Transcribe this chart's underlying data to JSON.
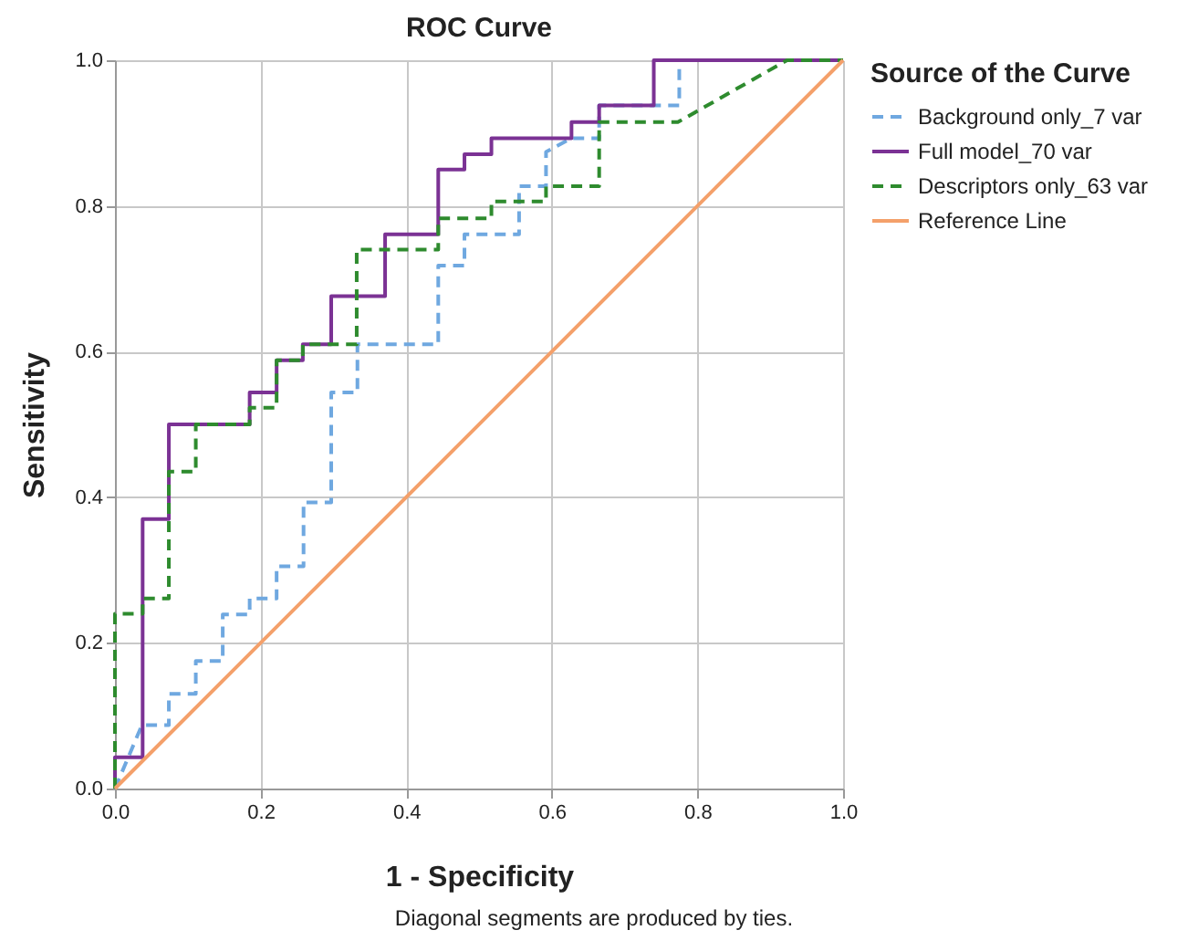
{
  "chart_data": {
    "type": "line",
    "title": "ROC Curve",
    "xlabel": "1 - Specificity",
    "ylabel": "Sensitivity",
    "legend_title": "Source of the Curve",
    "legend": "right",
    "grid": true,
    "xlim": [
      0,
      1
    ],
    "ylim": [
      0,
      1
    ],
    "xticks": [
      {
        "value": 0,
        "label": "0.0"
      },
      {
        "value": 0.2,
        "label": "0.2"
      },
      {
        "value": 0.4,
        "label": "0.4"
      },
      {
        "value": 0.6,
        "label": "0.6"
      },
      {
        "value": 0.8,
        "label": "0.8"
      },
      {
        "value": 1,
        "label": "1.0"
      }
    ],
    "yticks": [
      {
        "value": 0,
        "label": "0.0"
      },
      {
        "value": 0.2,
        "label": "0.2"
      },
      {
        "value": 0.4,
        "label": "0.4"
      },
      {
        "value": 0.6,
        "label": "0.6"
      },
      {
        "value": 0.8,
        "label": "0.8"
      },
      {
        "value": 1,
        "label": "1.0"
      }
    ],
    "series": [
      {
        "name": "Background only_7 var",
        "color": "#6fa8e0",
        "line_style": "dashed",
        "x": [
          0,
          0.037,
          0.074,
          0.074,
          0.111,
          0.111,
          0.148,
          0.148,
          0.185,
          0.185,
          0.222,
          0.222,
          0.259,
          0.259,
          0.297,
          0.297,
          0.333,
          0.333,
          0.444,
          0.444,
          0.48,
          0.48,
          0.555,
          0.555,
          0.592,
          0.592,
          0.627,
          0.665,
          0.665,
          0.775,
          0.775,
          1
        ],
        "values": [
          0,
          0.087,
          0.087,
          0.13,
          0.13,
          0.175,
          0.175,
          0.239,
          0.239,
          0.261,
          0.261,
          0.305,
          0.305,
          0.393,
          0.393,
          0.544,
          0.544,
          0.61,
          0.61,
          0.718,
          0.718,
          0.761,
          0.761,
          0.827,
          0.827,
          0.874,
          0.893,
          0.893,
          0.938,
          0.938,
          1,
          1
        ]
      },
      {
        "name": "Full model_70 var",
        "color": "#7b3294",
        "line_style": "solid",
        "x": [
          0,
          0,
          0.038,
          0.038,
          0.074,
          0.074,
          0.185,
          0.185,
          0.222,
          0.222,
          0.258,
          0.258,
          0.297,
          0.297,
          0.371,
          0.371,
          0.444,
          0.444,
          0.48,
          0.48,
          0.517,
          0.517,
          0.627,
          0.627,
          0.665,
          0.665,
          0.74,
          0.74,
          1
        ],
        "values": [
          0,
          0.043,
          0.043,
          0.37,
          0.37,
          0.5,
          0.5,
          0.544,
          0.544,
          0.588,
          0.588,
          0.61,
          0.61,
          0.676,
          0.676,
          0.761,
          0.761,
          0.85,
          0.85,
          0.871,
          0.871,
          0.893,
          0.893,
          0.915,
          0.915,
          0.938,
          0.938,
          1,
          1
        ]
      },
      {
        "name": "Descriptors only_63 var",
        "color": "#2e8b2e",
        "line_style": "dashed",
        "x": [
          0,
          0,
          0.038,
          0.038,
          0.074,
          0.074,
          0.111,
          0.111,
          0.185,
          0.185,
          0.222,
          0.222,
          0.258,
          0.258,
          0.332,
          0.332,
          0.444,
          0.444,
          0.517,
          0.517,
          0.592,
          0.592,
          0.665,
          0.665,
          0.773,
          0.923,
          1
        ],
        "values": [
          0,
          0.24,
          0.24,
          0.261,
          0.261,
          0.435,
          0.435,
          0.5,
          0.5,
          0.523,
          0.523,
          0.588,
          0.588,
          0.61,
          0.61,
          0.74,
          0.74,
          0.783,
          0.783,
          0.806,
          0.806,
          0.827,
          0.827,
          0.915,
          0.915,
          1,
          1
        ]
      },
      {
        "name": "Reference Line",
        "color": "#f4a06a",
        "line_style": "solid",
        "x": [
          0,
          1
        ],
        "values": [
          0,
          1
        ]
      }
    ],
    "annotations": [
      "Diagonal segments are produced by ties."
    ]
  }
}
